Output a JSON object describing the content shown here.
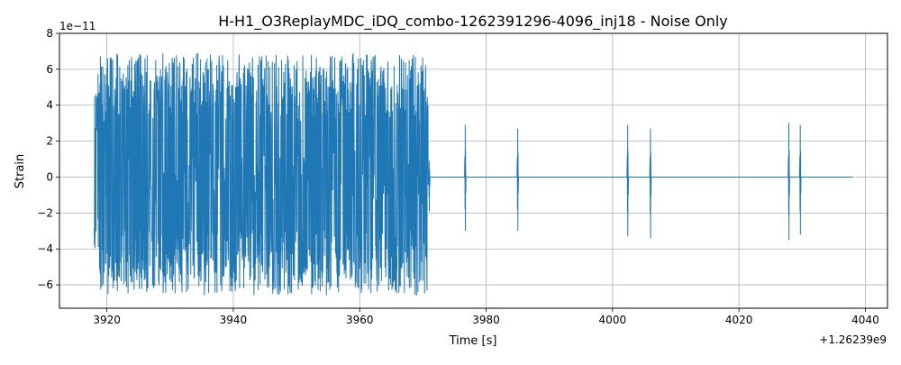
{
  "chart_data": {
    "type": "line",
    "title": "H-H1_O3ReplayMDC_iDQ_combo-1262391296-4096_inj18 - Noise Only",
    "xlabel": "Time [s]",
    "ylabel": "Strain",
    "x_offset_label": "+1.26239e9",
    "y_scale_label": "1e−11",
    "xlim": [
      3912.5,
      4043.5
    ],
    "ylim": [
      -7.3,
      8.0
    ],
    "x_ticks": [
      3920,
      3940,
      3960,
      3980,
      4000,
      4020,
      4040
    ],
    "x_tick_labels": [
      "3920",
      "3940",
      "3960",
      "3980",
      "4000",
      "4020",
      "4040"
    ],
    "y_ticks": [
      -6,
      -4,
      -2,
      0,
      2,
      4,
      6,
      8
    ],
    "y_tick_labels": [
      "−6",
      "−4",
      "−2",
      "0",
      "2",
      "4",
      "6",
      "8"
    ],
    "grid": true,
    "line_color": "#1f77b4",
    "series": [
      {
        "x_range": [
          3918.0,
          4038.0
        ],
        "noise_burst": {
          "x_range": [
            3918.0,
            3970.8
          ],
          "amplitude_max": 6.9,
          "amplitude_min": -6.6
        },
        "glitches": [
          {
            "x": 3971.0,
            "max": 0.9,
            "min": -1.9
          },
          {
            "x": 3976.7,
            "max": 2.9,
            "min": -3.0
          },
          {
            "x": 3985.0,
            "max": 2.7,
            "min": -3.0
          },
          {
            "x": 4002.4,
            "max": 2.9,
            "min": -3.3
          },
          {
            "x": 4006.0,
            "max": 2.7,
            "min": -3.4
          },
          {
            "x": 4027.9,
            "max": 3.0,
            "min": -3.5
          },
          {
            "x": 4029.7,
            "max": 2.9,
            "min": -3.2
          }
        ],
        "baseline": 0
      }
    ]
  }
}
